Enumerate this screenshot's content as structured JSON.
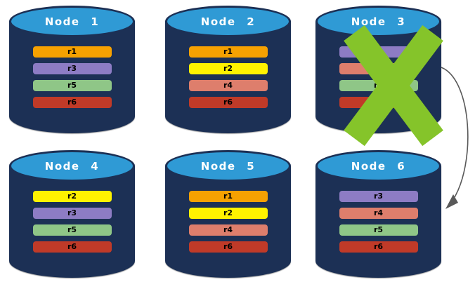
{
  "diagram": {
    "description": "Replicated database cluster with node failure",
    "nodes": [
      {
        "id": "node-1",
        "label": "Node 1",
        "replicas": [
          "r1",
          "r3",
          "r5",
          "r6"
        ],
        "failed": false,
        "row": 0,
        "col": 0
      },
      {
        "id": "node-2",
        "label": "Node 2",
        "replicas": [
          "r1",
          "r2",
          "r4",
          "r6"
        ],
        "failed": false,
        "row": 0,
        "col": 1
      },
      {
        "id": "node-3",
        "label": "Node 3",
        "replicas": [
          "r3",
          "r4",
          "r5",
          "r6"
        ],
        "failed": true,
        "row": 0,
        "col": 2
      },
      {
        "id": "node-4",
        "label": "Node 4",
        "replicas": [
          "r2",
          "r3",
          "r5",
          "r6"
        ],
        "failed": false,
        "row": 1,
        "col": 0
      },
      {
        "id": "node-5",
        "label": "Node 5",
        "replicas": [
          "r1",
          "r2",
          "r4",
          "r6"
        ],
        "failed": false,
        "row": 1,
        "col": 1
      },
      {
        "id": "node-6",
        "label": "Node 6",
        "replicas": [
          "r3",
          "r4",
          "r5",
          "r6"
        ],
        "failed": false,
        "row": 1,
        "col": 2
      }
    ],
    "replica_colors": {
      "r1": "#F6A101",
      "r2": "#FFF200",
      "r3": "#8D7CC4",
      "r4": "#DE7E6C",
      "r5": "#8FC687",
      "r6": "#C03A28"
    },
    "colors": {
      "cylinder_body": "#1C3055",
      "cylinder_top": "#2F9AD5",
      "failure_x": "#85C42A",
      "arrow": "#595959",
      "bar_text": "#000000",
      "title_text": "#FFFFFF",
      "background": "#FFFFFF"
    },
    "icons": {
      "failure": "x-icon",
      "failover": "curved-arrow-icon"
    },
    "arrow": {
      "from": "Node 3",
      "to": "Node 6"
    }
  }
}
